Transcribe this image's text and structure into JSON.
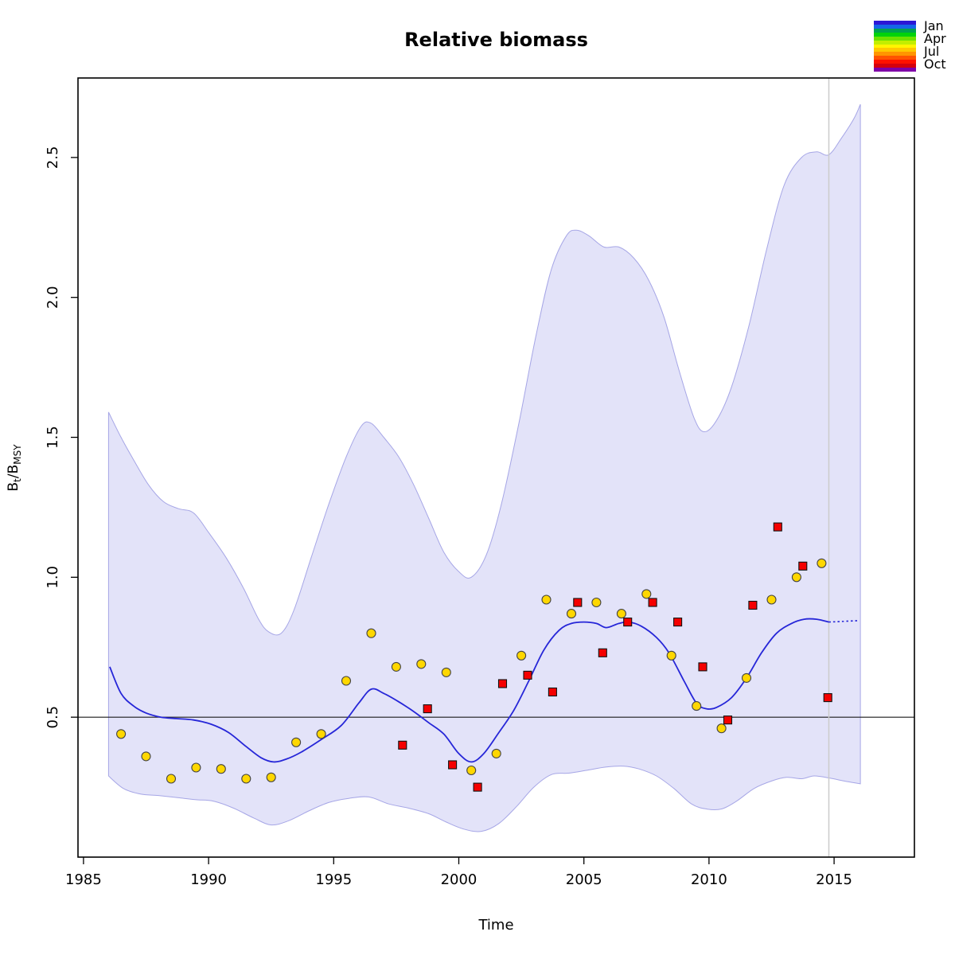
{
  "legend": {
    "months": [
      "Jan",
      "Apr",
      "Jul",
      "Oct"
    ],
    "colors": [
      "#2B16D6",
      "#1566E8",
      "#00A250",
      "#00D30B",
      "#6CE200",
      "#C2EE00",
      "#FFF500",
      "#FFC800",
      "#FF9500",
      "#FF5300",
      "#FF1000",
      "#D4000E",
      "#7F00A8"
    ]
  },
  "chart_data": {
    "type": "line",
    "title": "Relative biomass",
    "xlabel": "Time",
    "ylabel": "Bt/BMSY",
    "ylabel_parts": [
      "B",
      "t",
      "/",
      "B",
      "MSY"
    ],
    "x_range": [
      1984.78,
      2018.21
    ],
    "y_range": [
      0,
      2.784
    ],
    "x_ticks": [
      1985,
      1990,
      1995,
      2000,
      2005,
      2010,
      2015
    ],
    "x_tick_labels": [
      "1985",
      "1990",
      "1995",
      "2000",
      "2005",
      "2010",
      "2015"
    ],
    "y_ticks": [
      0.5,
      1.0,
      1.5,
      2.0,
      2.5
    ],
    "y_tick_labels": [
      "0.5",
      "1.0",
      "1.5",
      "2.0",
      "2.5"
    ],
    "grid": false,
    "legend_position": "top-right",
    "ref_line_y": 0.5,
    "forecast_start_x": 2014.79,
    "band": {
      "hi": [
        [
          1986.0,
          1.59
        ],
        [
          1986.5,
          1.5
        ],
        [
          1987.0,
          1.42
        ],
        [
          1987.6,
          1.33
        ],
        [
          1988.2,
          1.27
        ],
        [
          1988.8,
          1.245
        ],
        [
          1989.4,
          1.23
        ],
        [
          1990.0,
          1.16
        ],
        [
          1990.7,
          1.07
        ],
        [
          1991.4,
          0.96
        ],
        [
          1992.0,
          0.85
        ],
        [
          1992.4,
          0.805
        ],
        [
          1992.9,
          0.8
        ],
        [
          1993.4,
          0.88
        ],
        [
          1994.1,
          1.07
        ],
        [
          1994.8,
          1.26
        ],
        [
          1995.5,
          1.43
        ],
        [
          1996.1,
          1.54
        ],
        [
          1996.5,
          1.55
        ],
        [
          1997.0,
          1.5
        ],
        [
          1997.6,
          1.43
        ],
        [
          1998.2,
          1.33
        ],
        [
          1998.8,
          1.21
        ],
        [
          1999.4,
          1.09
        ],
        [
          2000.0,
          1.02
        ],
        [
          2000.5,
          1.0
        ],
        [
          2001.1,
          1.08
        ],
        [
          2001.7,
          1.26
        ],
        [
          2002.4,
          1.55
        ],
        [
          2003.1,
          1.87
        ],
        [
          2003.7,
          2.1
        ],
        [
          2004.3,
          2.22
        ],
        [
          2004.7,
          2.24
        ],
        [
          2005.2,
          2.22
        ],
        [
          2005.8,
          2.18
        ],
        [
          2006.4,
          2.18
        ],
        [
          2007.0,
          2.14
        ],
        [
          2007.6,
          2.06
        ],
        [
          2008.2,
          1.93
        ],
        [
          2008.8,
          1.74
        ],
        [
          2009.4,
          1.57
        ],
        [
          2009.8,
          1.52
        ],
        [
          2010.3,
          1.56
        ],
        [
          2010.9,
          1.68
        ],
        [
          2011.6,
          1.9
        ],
        [
          2012.3,
          2.17
        ],
        [
          2013.0,
          2.4
        ],
        [
          2013.7,
          2.5
        ],
        [
          2014.3,
          2.52
        ],
        [
          2014.79,
          2.51
        ],
        [
          2015.3,
          2.57
        ],
        [
          2015.8,
          2.64
        ],
        [
          2016.05,
          2.69
        ]
      ],
      "lo": [
        [
          1986.0,
          0.29
        ],
        [
          1986.6,
          0.245
        ],
        [
          1987.3,
          0.225
        ],
        [
          1988.0,
          0.22
        ],
        [
          1988.8,
          0.212
        ],
        [
          1989.5,
          0.205
        ],
        [
          1990.2,
          0.2
        ],
        [
          1991.0,
          0.175
        ],
        [
          1991.8,
          0.14
        ],
        [
          1992.5,
          0.115
        ],
        [
          1993.2,
          0.13
        ],
        [
          1994.0,
          0.165
        ],
        [
          1994.8,
          0.195
        ],
        [
          1995.6,
          0.21
        ],
        [
          1996.4,
          0.215
        ],
        [
          1997.2,
          0.19
        ],
        [
          1998.0,
          0.175
        ],
        [
          1998.8,
          0.155
        ],
        [
          1999.5,
          0.125
        ],
        [
          2000.2,
          0.1
        ],
        [
          2000.9,
          0.092
        ],
        [
          2001.6,
          0.12
        ],
        [
          2002.3,
          0.18
        ],
        [
          2003.0,
          0.25
        ],
        [
          2003.7,
          0.295
        ],
        [
          2004.4,
          0.3
        ],
        [
          2005.1,
          0.31
        ],
        [
          2005.9,
          0.322
        ],
        [
          2006.6,
          0.325
        ],
        [
          2007.2,
          0.315
        ],
        [
          2007.9,
          0.29
        ],
        [
          2008.6,
          0.245
        ],
        [
          2009.3,
          0.19
        ],
        [
          2009.9,
          0.172
        ],
        [
          2010.5,
          0.172
        ],
        [
          2011.1,
          0.2
        ],
        [
          2011.8,
          0.245
        ],
        [
          2012.5,
          0.272
        ],
        [
          2013.1,
          0.285
        ],
        [
          2013.7,
          0.28
        ],
        [
          2014.2,
          0.29
        ],
        [
          2014.79,
          0.283
        ],
        [
          2015.4,
          0.272
        ],
        [
          2016.05,
          0.262
        ]
      ]
    },
    "line": [
      [
        1986.05,
        0.68
      ],
      [
        1986.5,
        0.585
      ],
      [
        1987.0,
        0.54
      ],
      [
        1987.5,
        0.515
      ],
      [
        1988.1,
        0.5
      ],
      [
        1988.7,
        0.495
      ],
      [
        1989.4,
        0.49
      ],
      [
        1990.1,
        0.475
      ],
      [
        1990.8,
        0.445
      ],
      [
        1991.5,
        0.395
      ],
      [
        1992.1,
        0.355
      ],
      [
        1992.6,
        0.34
      ],
      [
        1993.1,
        0.35
      ],
      [
        1993.7,
        0.375
      ],
      [
        1994.5,
        0.42
      ],
      [
        1995.3,
        0.47
      ],
      [
        1996.0,
        0.55
      ],
      [
        1996.5,
        0.6
      ],
      [
        1997.0,
        0.585
      ],
      [
        1997.6,
        0.555
      ],
      [
        1998.2,
        0.52
      ],
      [
        1998.8,
        0.48
      ],
      [
        1999.4,
        0.44
      ],
      [
        2000.0,
        0.37
      ],
      [
        2000.5,
        0.34
      ],
      [
        2001.0,
        0.37
      ],
      [
        2001.6,
        0.445
      ],
      [
        2002.2,
        0.525
      ],
      [
        2002.8,
        0.63
      ],
      [
        2003.4,
        0.74
      ],
      [
        2004.0,
        0.81
      ],
      [
        2004.5,
        0.835
      ],
      [
        2005.0,
        0.84
      ],
      [
        2005.5,
        0.835
      ],
      [
        2005.9,
        0.82
      ],
      [
        2006.4,
        0.835
      ],
      [
        2006.8,
        0.84
      ],
      [
        2007.3,
        0.825
      ],
      [
        2007.9,
        0.785
      ],
      [
        2008.4,
        0.73
      ],
      [
        2009.0,
        0.63
      ],
      [
        2009.5,
        0.55
      ],
      [
        2009.9,
        0.53
      ],
      [
        2010.3,
        0.535
      ],
      [
        2010.9,
        0.57
      ],
      [
        2011.5,
        0.64
      ],
      [
        2012.1,
        0.73
      ],
      [
        2012.7,
        0.8
      ],
      [
        2013.3,
        0.835
      ],
      [
        2013.8,
        0.85
      ],
      [
        2014.3,
        0.85
      ],
      [
        2014.79,
        0.84
      ]
    ],
    "line_forecast": [
      [
        2014.79,
        0.84
      ],
      [
        2015.3,
        0.842
      ],
      [
        2015.95,
        0.845
      ]
    ],
    "series": [
      {
        "name": "biomass-index-jul",
        "marker": "circle",
        "color": "#FFD700",
        "points": [
          [
            1986.5,
            0.44
          ],
          [
            1987.5,
            0.36
          ],
          [
            1988.5,
            0.28
          ],
          [
            1989.5,
            0.32
          ],
          [
            1990.5,
            0.315
          ],
          [
            1991.5,
            0.28
          ],
          [
            1992.5,
            0.285
          ],
          [
            1993.5,
            0.41
          ],
          [
            1994.5,
            0.44
          ],
          [
            1995.5,
            0.63
          ],
          [
            1996.5,
            0.8
          ],
          [
            1997.5,
            0.68
          ],
          [
            1998.5,
            0.69
          ],
          [
            1999.5,
            0.66
          ],
          [
            2000.5,
            0.31
          ],
          [
            2001.5,
            0.37
          ],
          [
            2002.5,
            0.72
          ],
          [
            2003.5,
            0.92
          ],
          [
            2004.5,
            0.87
          ],
          [
            2005.5,
            0.91
          ],
          [
            2006.5,
            0.87
          ],
          [
            2007.5,
            0.94
          ],
          [
            2008.5,
            0.72
          ],
          [
            2009.5,
            0.54
          ],
          [
            2010.5,
            0.46
          ],
          [
            2011.5,
            0.64
          ],
          [
            2012.5,
            0.92
          ],
          [
            2013.5,
            1.0
          ],
          [
            2014.5,
            1.05
          ]
        ]
      },
      {
        "name": "biomass-index-oct",
        "marker": "square",
        "color": "#F50000",
        "points": [
          [
            1997.75,
            0.4
          ],
          [
            1998.75,
            0.53
          ],
          [
            1999.75,
            0.33
          ],
          [
            2000.75,
            0.25
          ],
          [
            2001.75,
            0.62
          ],
          [
            2002.75,
            0.65
          ],
          [
            2003.75,
            0.59
          ],
          [
            2004.75,
            0.91
          ],
          [
            2005.75,
            0.73
          ],
          [
            2006.75,
            0.84
          ],
          [
            2007.75,
            0.91
          ],
          [
            2008.75,
            0.84
          ],
          [
            2009.75,
            0.68
          ],
          [
            2010.75,
            0.49
          ],
          [
            2011.75,
            0.9
          ],
          [
            2012.75,
            1.18
          ],
          [
            2013.75,
            1.04
          ],
          [
            2014.75,
            0.57
          ]
        ]
      }
    ],
    "colors": {
      "band_fill": "#E3E3F9",
      "band_edge": "#A6A6E6",
      "line": "#2626D8",
      "ref_line": "#1A1A1A",
      "vline": "#CBCBCB",
      "border": "#000000",
      "circle_stroke": "#444444",
      "square_stroke": "#111111"
    }
  }
}
